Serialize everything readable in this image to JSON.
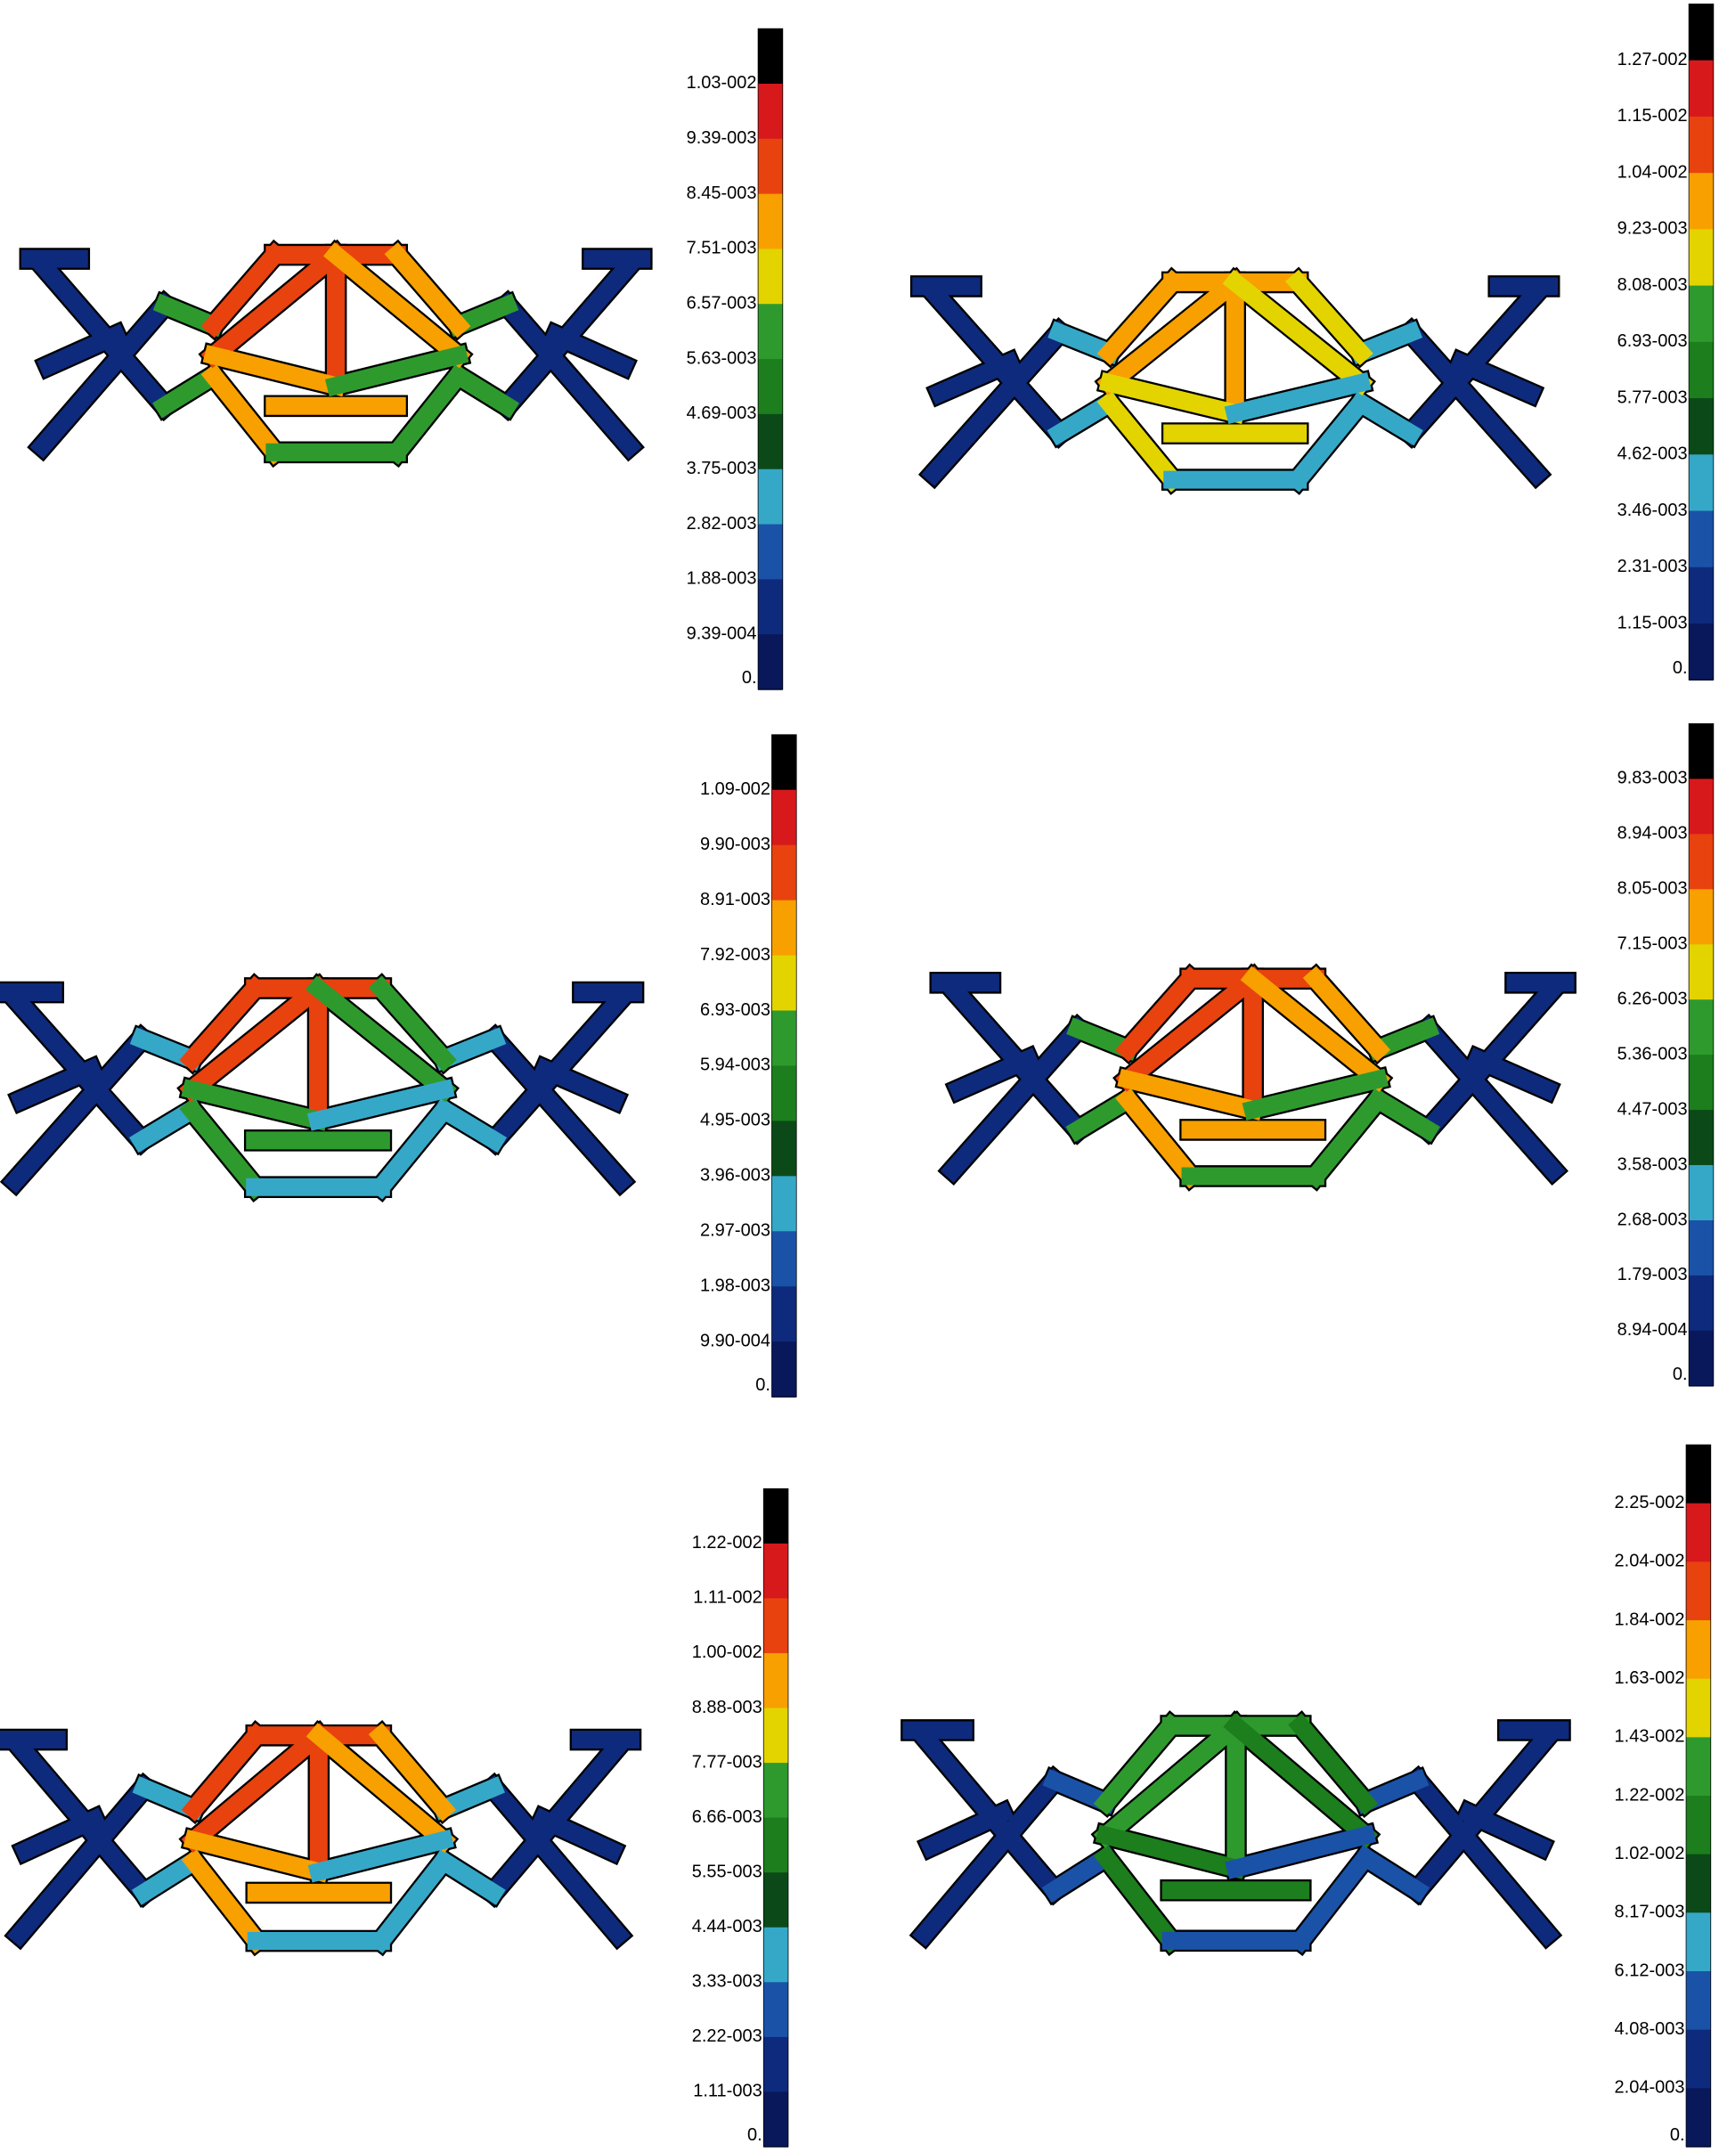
{
  "legend_colors": [
    "#000000",
    "#d7191c",
    "#e8420f",
    "#f7a000",
    "#e3d400",
    "#2e9a2e",
    "#1c7e1c",
    "#0b4a18",
    "#35a8c8",
    "#1a52a8",
    "#0e2a7c",
    "#08185a"
  ],
  "panels": [
    {
      "labels": [
        "1.03-002",
        "9.39-003",
        "8.45-003",
        "7.51-003",
        "6.57-003",
        "5.63-003",
        "4.69-003",
        "3.75-003",
        "2.82-003",
        "1.88-003",
        "9.39-004",
        "0."
      ]
    },
    {
      "labels": [
        "1.27-002",
        "1.15-002",
        "1.04-002",
        "9.23-003",
        "8.08-003",
        "6.93-003",
        "5.77-003",
        "4.62-003",
        "3.46-003",
        "2.31-003",
        "1.15-003",
        "0."
      ]
    },
    {
      "labels": [
        "1.09-002",
        "9.90-003",
        "8.91-003",
        "7.92-003",
        "6.93-003",
        "5.94-003",
        "4.95-003",
        "3.96-003",
        "2.97-003",
        "1.98-003",
        "9.90-004",
        "0."
      ]
    },
    {
      "labels": [
        "9.83-003",
        "8.94-003",
        "8.05-003",
        "7.15-003",
        "6.26-003",
        "5.36-003",
        "4.47-003",
        "3.58-003",
        "2.68-003",
        "1.79-003",
        "8.94-004",
        "0."
      ]
    },
    {
      "labels": [
        "1.22-002",
        "1.11-002",
        "1.00-002",
        "8.88-003",
        "7.77-003",
        "6.66-003",
        "5.55-003",
        "4.44-003",
        "3.33-003",
        "2.22-003",
        "1.11-003",
        "0."
      ]
    },
    {
      "labels": [
        "2.25-002",
        "2.04-002",
        "1.84-002",
        "1.63-002",
        "1.43-002",
        "1.22-002",
        "1.02-002",
        "8.17-003",
        "6.12-003",
        "4.08-003",
        "2.04-003",
        "0."
      ]
    }
  ]
}
